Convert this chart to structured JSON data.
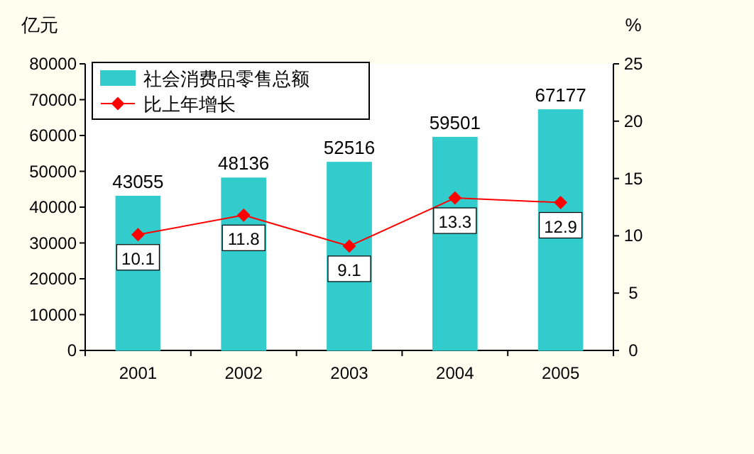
{
  "chart_data": {
    "type": "bar",
    "categories": [
      "2001",
      "2002",
      "2003",
      "2004",
      "2005"
    ],
    "ylabel": "亿元",
    "y2label": "%",
    "series": [
      {
        "name": "社会消费品零售总额",
        "color": "#33cccc",
        "values": [
          43055,
          48136,
          52516,
          59501,
          67177
        ]
      },
      {
        "name": "比上年增长",
        "type": "line",
        "axis": "y2",
        "color": "#ff0000",
        "marker": "diamond",
        "values": [
          10.1,
          11.8,
          9.1,
          13.3,
          12.9
        ]
      }
    ],
    "ylim": [
      0,
      80000
    ],
    "yticks": [
      0,
      10000,
      20000,
      30000,
      40000,
      50000,
      60000,
      70000,
      80000
    ],
    "y2lim": [
      0,
      25
    ],
    "y2ticks": [
      0,
      5,
      10,
      15,
      20,
      25
    ],
    "legend": "top left",
    "data_labels": true,
    "grid": false
  }
}
